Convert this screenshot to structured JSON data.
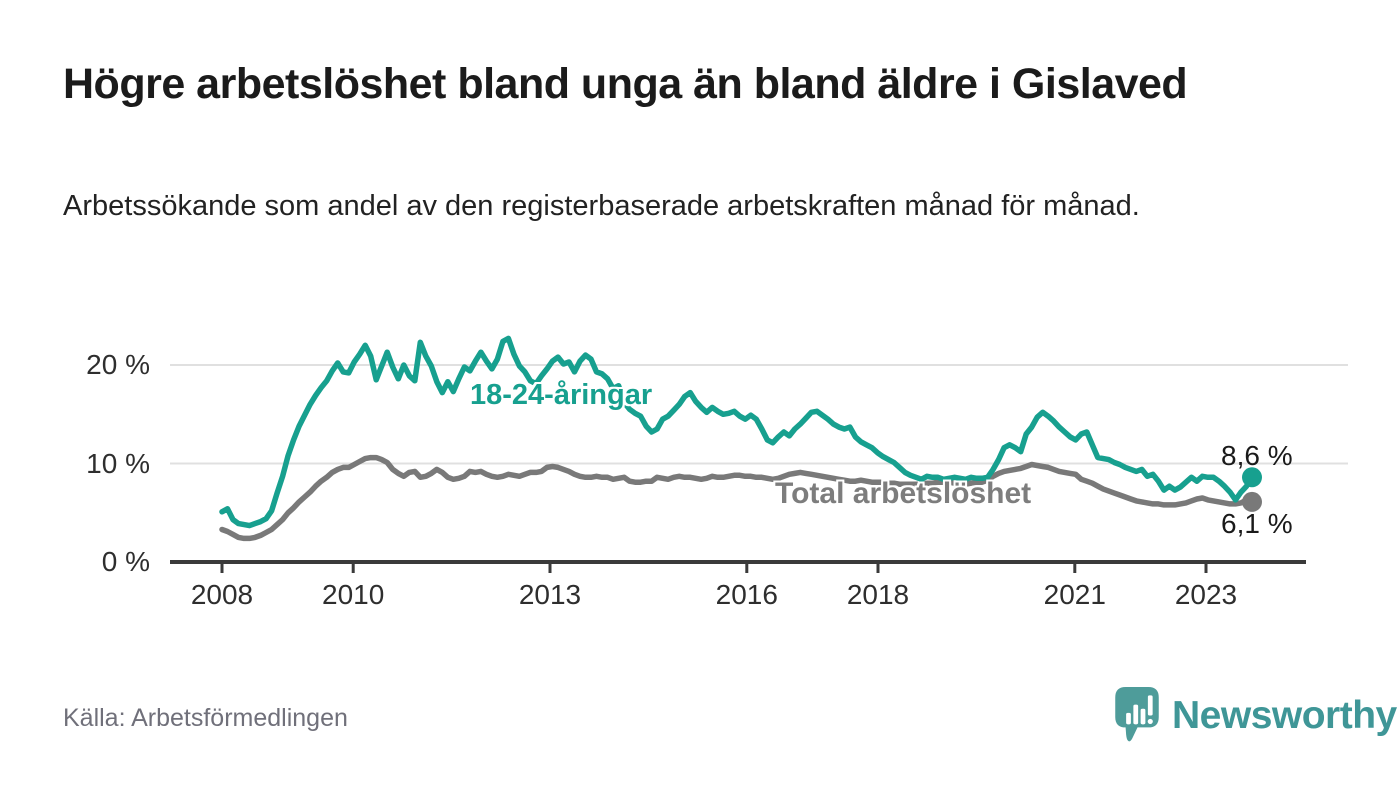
{
  "header": {
    "title": "Högre arbetslöshet bland unga än bland äldre i Gislaved",
    "subtitle": "Arbetssökande som andel av den registerbaserade arbetskraften månad för månad."
  },
  "footer": {
    "source": "Källa: Arbetsförmedlingen",
    "brand": "Newsworthy",
    "brand_icon": "newsworthy-pin-barchart-icon"
  },
  "colors": {
    "young_series": "#17A08F",
    "total_series": "#797979",
    "total_label": "#7D7D7D",
    "gridline": "#E0E0E0",
    "axis": "#3A3A3A",
    "text_dark": "#1B1B1B",
    "source_text": "#70707A",
    "brand_teal": "#3F9697",
    "brand_icon_teal": "#4E9C9A"
  },
  "chart_data": {
    "type": "line",
    "title": "Arbetssökande som andel av den registerbaserade arbetskraften månad för månad",
    "x_unit": "month",
    "x_start": "2008-01",
    "x_end": "2023-08",
    "x_tick_years": [
      2008,
      2010,
      2013,
      2016,
      2018,
      2021,
      2023
    ],
    "x_tick_labels": [
      "2008",
      "2010",
      "2013",
      "2016",
      "2018",
      "2021",
      "2023"
    ],
    "y_ticks": [
      0,
      10,
      20
    ],
    "y_tick_labels": [
      "0 %",
      "10 %",
      "20 %"
    ],
    "ylim": [
      0,
      23.5
    ],
    "grid": "horizontal",
    "legend_position": "inline-labels",
    "series": [
      {
        "name": "18-24-åringar",
        "color": "#17A08F",
        "end_label": "8,6 %",
        "last_value": 8.6,
        "values": [
          5.1,
          5.4,
          4.3,
          3.9,
          3.8,
          3.7,
          3.9,
          4.1,
          4.4,
          5.2,
          7.0,
          8.7,
          10.8,
          12.4,
          13.8,
          14.9,
          16.0,
          16.9,
          17.7,
          18.4,
          19.4,
          20.2,
          19.3,
          19.2,
          20.3,
          21.1,
          22.0,
          20.9,
          18.5,
          19.9,
          21.3,
          19.8,
          18.6,
          20.0,
          18.9,
          18.4,
          22.3,
          20.9,
          19.9,
          18.3,
          17.2,
          18.3,
          17.3,
          18.6,
          19.8,
          19.4,
          20.4,
          21.3,
          20.4,
          19.6,
          20.6,
          22.4,
          22.7,
          21.1,
          19.9,
          19.3,
          18.4,
          18.1,
          18.9,
          19.6,
          20.4,
          20.8,
          20.1,
          20.3,
          19.3,
          20.4,
          21.0,
          20.6,
          19.3,
          19.1,
          18.6,
          17.6,
          17.9,
          16.2,
          15.5,
          15.1,
          14.8,
          13.8,
          13.2,
          13.5,
          14.5,
          14.8,
          15.4,
          16.0,
          16.8,
          17.2,
          16.3,
          15.7,
          15.2,
          15.7,
          15.3,
          15.0,
          15.1,
          15.3,
          14.8,
          14.5,
          14.9,
          14.5,
          13.5,
          12.4,
          12.1,
          12.7,
          13.2,
          12.8,
          13.5,
          14.0,
          14.6,
          15.2,
          15.3,
          14.9,
          14.5,
          14.0,
          13.7,
          13.5,
          13.7,
          12.7,
          12.2,
          11.9,
          11.6,
          11.1,
          10.7,
          10.4,
          10.1,
          9.6,
          9.1,
          8.8,
          8.6,
          8.4,
          8.7,
          8.6,
          8.6,
          8.4,
          8.5,
          8.6,
          8.5,
          8.4,
          8.6,
          8.5,
          8.5,
          8.6,
          9.4,
          10.4,
          11.6,
          11.9,
          11.6,
          11.2,
          13.0,
          13.7,
          14.7,
          15.2,
          14.8,
          14.3,
          13.7,
          13.2,
          12.7,
          12.4,
          13.0,
          13.2,
          11.9,
          10.6,
          10.5,
          10.4,
          10.1,
          9.9,
          9.6,
          9.4,
          9.2,
          9.4,
          8.7,
          8.9,
          8.2,
          7.3,
          7.7,
          7.3,
          7.6,
          8.1,
          8.6,
          8.2,
          8.7,
          8.6,
          8.6,
          8.2,
          7.7,
          7.1,
          6.3,
          7.1,
          7.7,
          8.6
        ]
      },
      {
        "name": "Total arbetslöshet",
        "color": "#797979",
        "end_label": "6,1 %",
        "last_value": 6.1,
        "values": [
          3.3,
          3.1,
          2.8,
          2.5,
          2.4,
          2.4,
          2.5,
          2.7,
          3.0,
          3.3,
          3.8,
          4.3,
          5.0,
          5.5,
          6.1,
          6.6,
          7.1,
          7.7,
          8.2,
          8.6,
          9.1,
          9.4,
          9.6,
          9.6,
          9.9,
          10.2,
          10.5,
          10.6,
          10.6,
          10.4,
          10.1,
          9.4,
          9.0,
          8.7,
          9.1,
          9.2,
          8.6,
          8.7,
          9.0,
          9.4,
          9.1,
          8.6,
          8.4,
          8.5,
          8.7,
          9.2,
          9.1,
          9.2,
          8.9,
          8.7,
          8.6,
          8.7,
          8.9,
          8.8,
          8.7,
          8.9,
          9.1,
          9.1,
          9.2,
          9.6,
          9.7,
          9.6,
          9.4,
          9.2,
          8.9,
          8.7,
          8.6,
          8.6,
          8.7,
          8.6,
          8.6,
          8.4,
          8.5,
          8.6,
          8.2,
          8.1,
          8.1,
          8.2,
          8.2,
          8.6,
          8.5,
          8.4,
          8.6,
          8.7,
          8.6,
          8.6,
          8.5,
          8.4,
          8.5,
          8.7,
          8.6,
          8.6,
          8.7,
          8.8,
          8.8,
          8.7,
          8.7,
          8.6,
          8.6,
          8.5,
          8.4,
          8.5,
          8.7,
          8.9,
          9.0,
          9.1,
          9.0,
          8.9,
          8.8,
          8.7,
          8.6,
          8.5,
          8.4,
          8.3,
          8.2,
          8.2,
          8.3,
          8.2,
          8.1,
          8.1,
          8.1,
          8.0,
          8.0,
          7.9,
          7.9,
          7.9,
          7.9,
          7.9,
          8.0,
          8.0,
          8.1,
          8.1,
          8.1,
          8.0,
          7.9,
          7.9,
          8.0,
          8.1,
          8.1,
          8.3,
          8.7,
          9.0,
          9.2,
          9.3,
          9.4,
          9.5,
          9.7,
          9.9,
          9.8,
          9.7,
          9.6,
          9.4,
          9.2,
          9.1,
          9.0,
          8.9,
          8.4,
          8.2,
          8.0,
          7.7,
          7.4,
          7.2,
          7.0,
          6.8,
          6.6,
          6.4,
          6.2,
          6.1,
          6.0,
          5.9,
          5.9,
          5.8,
          5.8,
          5.8,
          5.9,
          6.0,
          6.2,
          6.4,
          6.5,
          6.3,
          6.2,
          6.1,
          6.0,
          5.9,
          5.9,
          6.0,
          6.3,
          6.1
        ]
      }
    ]
  }
}
